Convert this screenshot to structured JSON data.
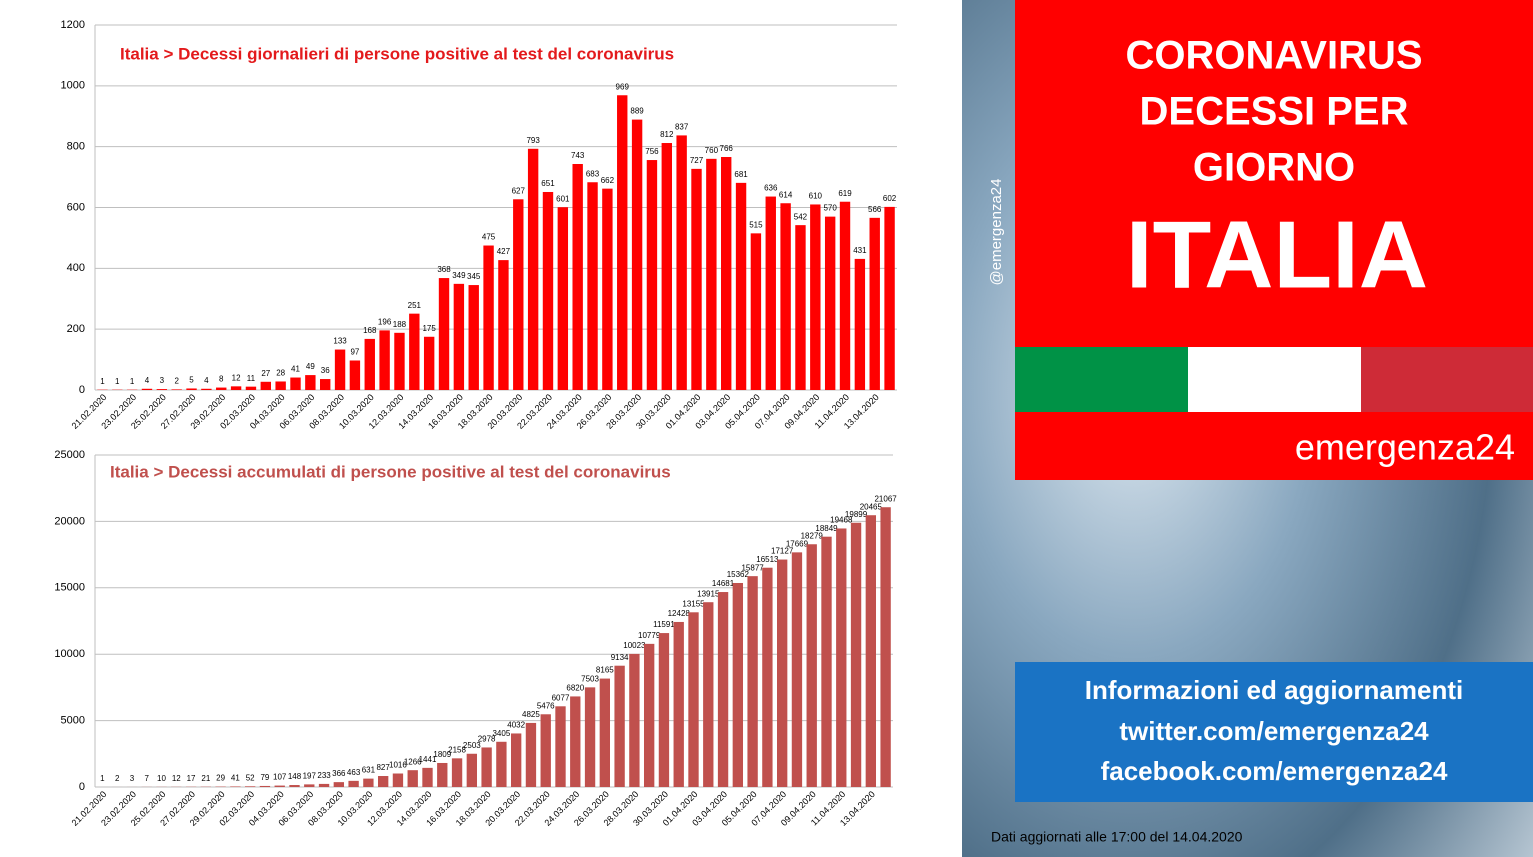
{
  "chart_data": [
    {
      "type": "bar",
      "title": "Italia > Decessi giornalieri di persone positive al test del coronavirus",
      "color": "#ff0000",
      "grid": true,
      "categories": [
        "21.02.2020",
        null,
        "23.02.2020",
        null,
        "25.02.2020",
        null,
        "27.02.2020",
        null,
        "29.02.2020",
        null,
        "02.03.2020",
        null,
        "04.03.2020",
        null,
        "06.03.2020",
        null,
        "08.03.2020",
        null,
        "10.03.2020",
        null,
        "12.03.2020",
        null,
        "14.03.2020",
        null,
        "16.03.2020",
        null,
        "18.03.2020",
        null,
        "20.03.2020",
        null,
        "22.03.2020",
        null,
        "24.03.2020",
        null,
        "26.03.2020",
        null,
        "28.03.2020",
        null,
        "30.03.2020",
        null,
        "01.04.2020",
        null,
        "03.04.2020",
        null,
        "05.04.2020",
        null,
        "07.04.2020",
        null,
        "09.04.2020",
        null,
        "11.04.2020",
        null,
        "13.04.2020",
        null
      ],
      "values": [
        1,
        1,
        1,
        4,
        3,
        2,
        5,
        4,
        8,
        12,
        11,
        27,
        28,
        41,
        49,
        36,
        133,
        97,
        168,
        196,
        188,
        251,
        175,
        368,
        349,
        345,
        475,
        427,
        627,
        793,
        651,
        601,
        743,
        683,
        662,
        969,
        889,
        756,
        812,
        837,
        727,
        760,
        766,
        681,
        515,
        636,
        614,
        542,
        610,
        570,
        619,
        431,
        566,
        602
      ],
      "ylim": [
        0,
        1200
      ],
      "yticks": [
        0,
        200,
        400,
        600,
        800,
        1000,
        1200
      ]
    },
    {
      "type": "bar",
      "title": "Italia > Decessi accumulati di persone positive al test del coronavirus",
      "color": "#c0504d",
      "grid": true,
      "categories": [
        "21.02.2020",
        null,
        "23.02.2020",
        null,
        "25.02.2020",
        null,
        "27.02.2020",
        null,
        "29.02.2020",
        null,
        "02.03.2020",
        null,
        "04.03.2020",
        null,
        "06.03.2020",
        null,
        "08.03.2020",
        null,
        "10.03.2020",
        null,
        "12.03.2020",
        null,
        "14.03.2020",
        null,
        "16.03.2020",
        null,
        "18.03.2020",
        null,
        "20.03.2020",
        null,
        "22.03.2020",
        null,
        "24.03.2020",
        null,
        "26.03.2020",
        null,
        "28.03.2020",
        null,
        "30.03.2020",
        null,
        "01.04.2020",
        null,
        "03.04.2020",
        null,
        "05.04.2020",
        null,
        "07.04.2020",
        null,
        "09.04.2020",
        null,
        "11.04.2020",
        null,
        "13.04.2020",
        null
      ],
      "values": [
        1,
        2,
        3,
        7,
        10,
        12,
        17,
        21,
        29,
        41,
        52,
        79,
        107,
        148,
        197,
        233,
        366,
        463,
        631,
        827,
        1016,
        1266,
        1441,
        1809,
        2158,
        2503,
        2978,
        3405,
        4032,
        4825,
        5476,
        6077,
        6820,
        7503,
        8165,
        9134,
        10023,
        10779,
        11591,
        12428,
        13155,
        13915,
        14681,
        15362,
        15877,
        16513,
        17127,
        17669,
        18279,
        18849,
        19468,
        19899,
        20465,
        21067
      ],
      "ylim": [
        0,
        25000
      ],
      "yticks": [
        0,
        5000,
        10000,
        15000,
        20000,
        25000
      ]
    }
  ],
  "panel": {
    "title_lines": [
      "CORONAVIRUS",
      "DECESSI PER",
      "GIORNO"
    ],
    "country": "ITALIA",
    "brand": "emergenza24",
    "handle": "@emergenza24",
    "info_lines": [
      "Informazioni ed aggiornamenti",
      "twitter.com/emergenza24",
      "facebook.com/emergenza24"
    ],
    "footer": "Dati aggiornati alle 17:00 del 14.04.2020"
  }
}
